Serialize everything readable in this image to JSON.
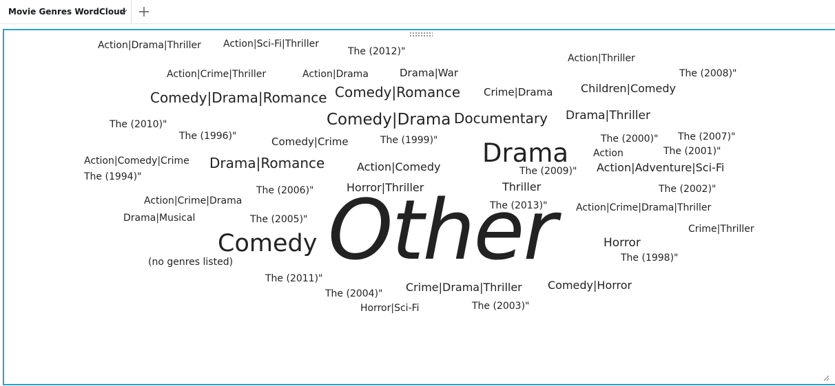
{
  "tab": {
    "label": "Movie Genres WordCloud"
  },
  "icons": {
    "tab_menu": "chevron-down-icon",
    "add_tab": "plus-icon",
    "drag": "drag-handle-icon",
    "resize": "resize-corner-icon"
  },
  "colors": {
    "accent": "#2aa0c8",
    "text": "#222222"
  },
  "wordcloud": {
    "words": [
      {
        "text": "Other"
      },
      {
        "text": "Drama"
      },
      {
        "text": "Comedy"
      },
      {
        "text": "Comedy|Drama"
      },
      {
        "text": "Comedy|Drama|Romance"
      },
      {
        "text": "Comedy|Romance"
      },
      {
        "text": "Documentary"
      },
      {
        "text": "Drama|Romance"
      },
      {
        "text": "Drama|Thriller"
      },
      {
        "text": "Horror"
      },
      {
        "text": "Action|Adventure|Sci-Fi"
      },
      {
        "text": "Children|Comedy"
      },
      {
        "text": "Action|Comedy"
      },
      {
        "text": "Thriller"
      },
      {
        "text": "Horror|Thriller"
      },
      {
        "text": "Crime|Drama|Thriller"
      },
      {
        "text": "Comedy|Horror"
      },
      {
        "text": "Crime|Drama"
      },
      {
        "text": "Drama|War"
      },
      {
        "text": "Comedy|Crime"
      },
      {
        "text": "Action|Drama|Thriller"
      },
      {
        "text": "Action|Sci-Fi|Thriller"
      },
      {
        "text": "Action|Crime|Thriller"
      },
      {
        "text": "Action|Drama"
      },
      {
        "text": "Action|Thriller"
      },
      {
        "text": "Action|Comedy|Crime"
      },
      {
        "text": "Action|Crime|Drama"
      },
      {
        "text": "Drama|Musical"
      },
      {
        "text": "(no genres listed)"
      },
      {
        "text": "Action|Crime|Drama|Thriller"
      },
      {
        "text": "Crime|Thriller"
      },
      {
        "text": "Horror|Sci-Fi"
      },
      {
        "text": "Action"
      },
      {
        "text": "The (2012)\""
      },
      {
        "text": "The (2008)\""
      },
      {
        "text": "The (2010)\""
      },
      {
        "text": "The (1996)\""
      },
      {
        "text": "The (1999)\""
      },
      {
        "text": "The (2000)\""
      },
      {
        "text": "The (2007)\""
      },
      {
        "text": "The (2001)\""
      },
      {
        "text": "The (2009)\""
      },
      {
        "text": "The (1994)\""
      },
      {
        "text": "The (2006)\""
      },
      {
        "text": "The (2002)\""
      },
      {
        "text": "The (2013)\""
      },
      {
        "text": "The (2005)\""
      },
      {
        "text": "The (1998)\""
      },
      {
        "text": "The (2011)\""
      },
      {
        "text": "The (2004)\""
      },
      {
        "text": "The (2003)\""
      }
    ]
  }
}
